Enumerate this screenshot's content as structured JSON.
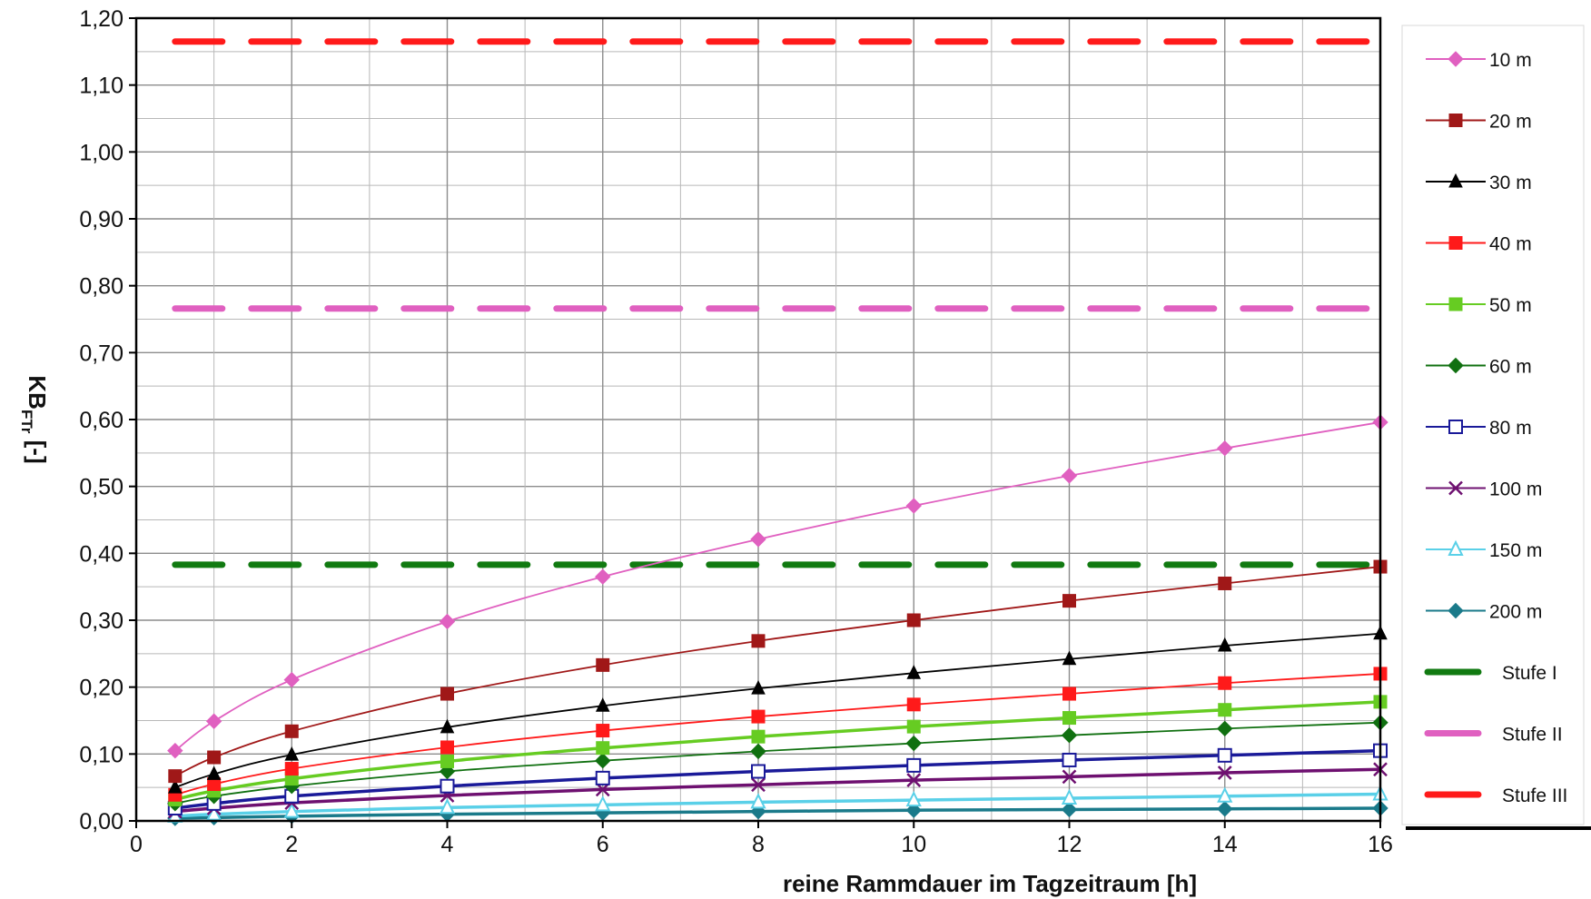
{
  "chart_data": {
    "type": "line",
    "xlabel": "reine Rammdauer im Tagzeitraum [h]",
    "ylabel": {
      "main": "KB",
      "sub": "FTr",
      "unit": " [-]"
    },
    "xlim": [
      0,
      16
    ],
    "ylim": [
      0,
      1.2
    ],
    "x_ticks": [
      0,
      2,
      4,
      6,
      8,
      10,
      12,
      14,
      16
    ],
    "y_ticks": [
      "0,00",
      "0,10",
      "0,20",
      "0,30",
      "0,40",
      "0,50",
      "0,60",
      "0,70",
      "0,80",
      "0,90",
      "1,00",
      "1,10",
      "1,20"
    ],
    "grid": true,
    "legend_position": "right",
    "x": [
      0.5,
      1,
      2,
      4,
      6,
      8,
      10,
      12,
      14,
      16
    ],
    "series": [
      {
        "name": "10 m",
        "color": "#e060c0",
        "marker": "diamond",
        "values": [
          0.105,
          0.149,
          0.211,
          0.298,
          0.365,
          0.421,
          0.471,
          0.516,
          0.557,
          0.596
        ]
      },
      {
        "name": "20 m",
        "color": "#a01818",
        "marker": "square",
        "values": [
          0.067,
          0.095,
          0.134,
          0.19,
          0.233,
          0.269,
          0.3,
          0.329,
          0.355,
          0.38
        ]
      },
      {
        "name": "30 m",
        "color": "#000000",
        "marker": "triangle",
        "values": [
          0.05,
          0.07,
          0.099,
          0.14,
          0.172,
          0.198,
          0.221,
          0.242,
          0.262,
          0.28
        ]
      },
      {
        "name": "40 m",
        "color": "#ff1a1a",
        "marker": "square",
        "values": [
          0.039,
          0.055,
          0.078,
          0.11,
          0.135,
          0.156,
          0.174,
          0.19,
          0.206,
          0.22
        ]
      },
      {
        "name": "50 m",
        "color": "#66cc22",
        "marker": "square",
        "values": [
          0.032,
          0.045,
          0.063,
          0.089,
          0.109,
          0.126,
          0.141,
          0.154,
          0.166,
          0.178
        ]
      },
      {
        "name": "60 m",
        "color": "#107010",
        "marker": "diamond",
        "values": [
          0.026,
          0.037,
          0.052,
          0.074,
          0.09,
          0.104,
          0.116,
          0.128,
          0.138,
          0.147
        ]
      },
      {
        "name": "80 m",
        "color": "#1a1a99",
        "marker": "open-square",
        "values": [
          0.019,
          0.026,
          0.037,
          0.052,
          0.064,
          0.074,
          0.083,
          0.091,
          0.098,
          0.105
        ]
      },
      {
        "name": "100 m",
        "color": "#6e1070",
        "marker": "x",
        "values": [
          0.014,
          0.019,
          0.027,
          0.038,
          0.047,
          0.054,
          0.061,
          0.066,
          0.072,
          0.077
        ]
      },
      {
        "name": "150 m",
        "color": "#5ad0e8",
        "marker": "open-triangle",
        "values": [
          0.007,
          0.01,
          0.014,
          0.02,
          0.024,
          0.028,
          0.031,
          0.034,
          0.037,
          0.04
        ]
      },
      {
        "name": "200 m",
        "color": "#1a7a8a",
        "marker": "diamond",
        "values": [
          0.004,
          0.005,
          0.007,
          0.01,
          0.012,
          0.014,
          0.016,
          0.017,
          0.018,
          0.019
        ]
      }
    ],
    "reference_lines": [
      {
        "name": "Stufe I",
        "color": "#117a11",
        "value": 0.383
      },
      {
        "name": "Stufe II",
        "color": "#e060c0",
        "value": 0.766
      },
      {
        "name": "Stufe III",
        "color": "#ff1a1a",
        "value": 1.165
      }
    ]
  }
}
